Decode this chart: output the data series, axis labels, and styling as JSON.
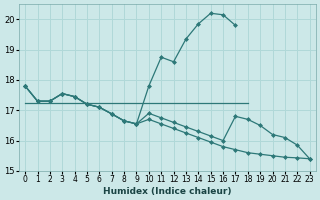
{
  "xlabel": "Humidex (Indice chaleur)",
  "bg_color": "#cce8e8",
  "line_color": "#2d7878",
  "grid_color": "#b0d8d8",
  "xlim": [
    -0.5,
    23.5
  ],
  "ylim": [
    15.0,
    20.5
  ],
  "yticks": [
    15,
    16,
    17,
    18,
    19,
    20
  ],
  "xticks": [
    0,
    1,
    2,
    3,
    4,
    5,
    6,
    7,
    8,
    9,
    10,
    11,
    12,
    13,
    14,
    15,
    16,
    17,
    18,
    19,
    20,
    21,
    22,
    23
  ],
  "line1_x": [
    0,
    1,
    2,
    3,
    4,
    5,
    6,
    7,
    8,
    9,
    10,
    11,
    12,
    13,
    14,
    15,
    16,
    17
  ],
  "line1_y": [
    17.8,
    17.3,
    17.3,
    17.55,
    17.45,
    17.2,
    17.1,
    16.88,
    16.65,
    16.55,
    17.8,
    18.75,
    18.6,
    19.35,
    19.85,
    20.2,
    20.15,
    19.8
  ],
  "line2_x": [
    0,
    1,
    2,
    3,
    4,
    5,
    6,
    7,
    8,
    9,
    10,
    11,
    12,
    13,
    14,
    15,
    16,
    17,
    18
  ],
  "line2_y": [
    17.25,
    17.25,
    17.25,
    17.25,
    17.25,
    17.25,
    17.25,
    17.25,
    17.25,
    17.25,
    17.25,
    17.25,
    17.25,
    17.25,
    17.25,
    17.25,
    17.25,
    17.25,
    17.25
  ],
  "line3_x": [
    0,
    1,
    2,
    3,
    4,
    5,
    6,
    7,
    8,
    9,
    10,
    11,
    12,
    13,
    14,
    15,
    16,
    17,
    18,
    19,
    20,
    21,
    22,
    23
  ],
  "line3_y": [
    17.8,
    17.3,
    17.3,
    17.55,
    17.45,
    17.2,
    17.1,
    16.88,
    16.65,
    16.55,
    16.9,
    16.75,
    16.6,
    16.45,
    16.3,
    16.15,
    16.0,
    16.8,
    16.7,
    16.5,
    16.2,
    16.1,
    15.85,
    15.4
  ],
  "line4_x": [
    0,
    1,
    2,
    3,
    4,
    5,
    6,
    7,
    8,
    9,
    10,
    11,
    12,
    13,
    14,
    15,
    16,
    17,
    18,
    19,
    20,
    21,
    22,
    23
  ],
  "line4_y": [
    17.8,
    17.3,
    17.3,
    17.55,
    17.45,
    17.2,
    17.1,
    16.88,
    16.65,
    16.55,
    16.7,
    16.55,
    16.4,
    16.25,
    16.1,
    15.95,
    15.8,
    15.7,
    15.6,
    15.55,
    15.5,
    15.45,
    15.43,
    15.4
  ]
}
